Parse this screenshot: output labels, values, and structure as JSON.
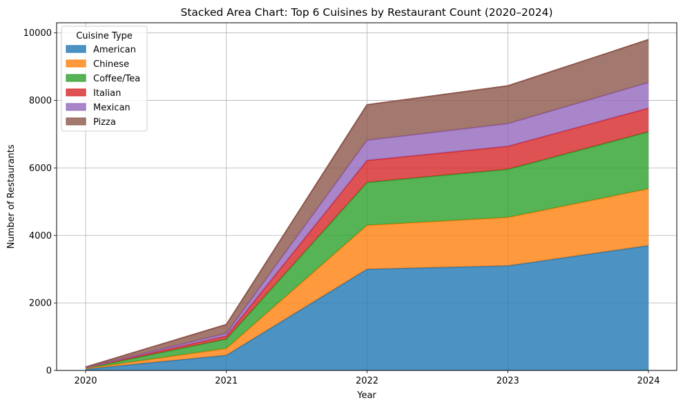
{
  "chart_data": {
    "type": "area",
    "stacked": true,
    "title": "Stacked Area Chart: Top 6 Cuisines by Restaurant Count (2020–2024)",
    "xlabel": "Year",
    "ylabel": "Number of Restaurants",
    "categories": [
      "2020",
      "2021",
      "2022",
      "2023",
      "2024"
    ],
    "yticks": [
      "0",
      "2000",
      "4000",
      "6000",
      "8000",
      "10000"
    ],
    "ylim": [
      0,
      10300
    ],
    "grid": true,
    "legend": {
      "title": "Cuisine Type",
      "placement": "top-left"
    },
    "series": [
      {
        "name": "American",
        "color": "#1f77b4",
        "values": [
          40,
          450,
          3000,
          3100,
          3700
        ]
      },
      {
        "name": "Chinese",
        "color": "#ff7f0e",
        "values": [
          15,
          200,
          1300,
          1430,
          1680
        ]
      },
      {
        "name": "Coffee/Tea",
        "color": "#2ca02c",
        "values": [
          15,
          280,
          1270,
          1430,
          1690
        ]
      },
      {
        "name": "Italian",
        "color": "#d62728",
        "values": [
          10,
          90,
          650,
          680,
          700
        ]
      },
      {
        "name": "Mexican",
        "color": "#9467bd",
        "values": [
          5,
          80,
          600,
          670,
          760
        ]
      },
      {
        "name": "Pizza",
        "color": "#8c564b",
        "values": [
          15,
          260,
          1050,
          1120,
          1270
        ]
      }
    ]
  }
}
